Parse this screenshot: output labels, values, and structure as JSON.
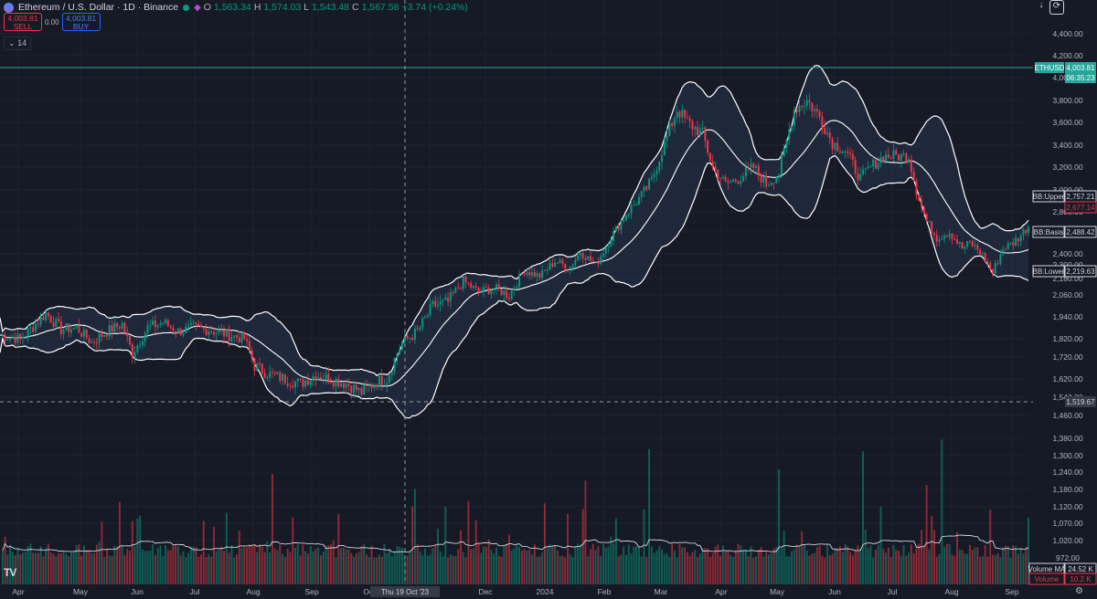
{
  "header": {
    "symbol": "Ethereum / U.S. Dollar · 1D · Binance",
    "o_label": "O",
    "o": "1,563.34",
    "h_label": "H",
    "h": "1,574.03",
    "l_label": "L",
    "l": "1,543.48",
    "c_label": "C",
    "c": "1,567.58",
    "change": "+3.74 (+0.24%)"
  },
  "trade": {
    "sell_price": "4,003.81",
    "sell_label": "SELL",
    "spread": "0.00",
    "buy_price": "4,003.81",
    "buy_label": "BUY"
  },
  "indicator_badge": "14",
  "top_icons": [
    "download-icon",
    "refresh-icon"
  ],
  "footer": {
    "tv_logo": "TV",
    "settings_icon": "⚙"
  },
  "colors": {
    "bg": "#161a25",
    "up": "#089981",
    "down": "#f23645",
    "band": "#ffffff",
    "price_line": "#26a69a",
    "blue": "#2962ff"
  },
  "chart_data": {
    "type": "candlestick",
    "y_axis": {
      "ticks": [
        4400,
        4200,
        4000,
        3800,
        3600,
        3400,
        3200,
        3000,
        2800,
        2600,
        2400,
        2300,
        2180,
        2060,
        1940,
        1820,
        1720,
        1620,
        1540,
        1460,
        1380,
        1300,
        1240,
        1180,
        1120,
        1070,
        1020,
        972
      ]
    },
    "y_tick_labels": [
      "4,400.00",
      "4,200.00",
      "4,000.00",
      "3,800.00",
      "3,600.00",
      "3,400.00",
      "3,200.00",
      "3,000.00",
      "2,800.00",
      "2,600.00",
      "2,400.00",
      "2,300.00",
      "2,180.00",
      "2,060.00",
      "1,940.00",
      "1,820.00",
      "1,720.00",
      "1,620.00",
      "1,540.00",
      "1,460.00",
      "1,380.00",
      "1,300.00",
      "1,240.00",
      "1,180.00",
      "1,120.00",
      "1,070.00",
      "1,020.00",
      "972.00"
    ],
    "x_axis": {
      "labels": [
        "Apr",
        "May",
        "Jun",
        "Jul",
        "Aug",
        "Sep",
        "Oct",
        "Nov",
        "Dec",
        "2024",
        "Feb",
        "Mar",
        "Apr",
        "May",
        "Jun",
        "Jul",
        "Aug",
        "Sep"
      ]
    },
    "crosshair": {
      "date": "Thu 19 Oct '23",
      "price": "1,519.67"
    },
    "current_price": {
      "symbol": "ETHUSD",
      "price": "4,003.81",
      "countdown": "06:35:23"
    },
    "bollinger_labels": [
      {
        "name": "BB:Upper",
        "value": "2,757.21"
      },
      {
        "name": "",
        "value": "2,677.14"
      },
      {
        "name": "BB:Basis",
        "value": "2,488.42"
      },
      {
        "name": "BB:Lower",
        "value": "2,219.63"
      }
    ],
    "volume_labels": [
      {
        "name": "Volume MA",
        "value": "24.52 K"
      },
      {
        "name": "Volume",
        "value": "10.2 K"
      }
    ],
    "price_keypoints": [
      [
        0,
        1840
      ],
      [
        8,
        1820
      ],
      [
        14,
        1900
      ],
      [
        18,
        1960
      ],
      [
        24,
        1870
      ],
      [
        30,
        1880
      ],
      [
        36,
        1800
      ],
      [
        42,
        1860
      ],
      [
        48,
        1900
      ],
      [
        52,
        1740
      ],
      [
        58,
        1880
      ],
      [
        64,
        1910
      ],
      [
        70,
        1860
      ],
      [
        76,
        1880
      ],
      [
        82,
        1870
      ],
      [
        90,
        1840
      ],
      [
        96,
        1820
      ],
      [
        100,
        1680
      ],
      [
        106,
        1640
      ],
      [
        112,
        1620
      ],
      [
        118,
        1600
      ],
      [
        124,
        1640
      ],
      [
        130,
        1620
      ],
      [
        136,
        1600
      ],
      [
        142,
        1560
      ],
      [
        148,
        1610
      ],
      [
        152,
        1620
      ],
      [
        158,
        1800
      ],
      [
        164,
        1860
      ],
      [
        170,
        2000
      ],
      [
        176,
        2020
      ],
      [
        182,
        2160
      ],
      [
        188,
        2080
      ],
      [
        194,
        2110
      ],
      [
        200,
        2060
      ],
      [
        206,
        2250
      ],
      [
        212,
        2200
      ],
      [
        218,
        2330
      ],
      [
        224,
        2280
      ],
      [
        228,
        2420
      ],
      [
        234,
        2300
      ],
      [
        240,
        2550
      ],
      [
        246,
        2780
      ],
      [
        252,
        2950
      ],
      [
        256,
        3080
      ],
      [
        260,
        3350
      ],
      [
        266,
        3720
      ],
      [
        270,
        3600
      ],
      [
        276,
        3500
      ],
      [
        280,
        3200
      ],
      [
        285,
        3050
      ],
      [
        290,
        3100
      ],
      [
        296,
        3200
      ],
      [
        301,
        3050
      ],
      [
        306,
        3150
      ],
      [
        312,
        3720
      ],
      [
        317,
        3800
      ],
      [
        322,
        3650
      ],
      [
        327,
        3420
      ],
      [
        332,
        3350
      ],
      [
        338,
        3100
      ],
      [
        342,
        3200
      ],
      [
        347,
        3300
      ],
      [
        352,
        3300
      ],
      [
        357,
        3300
      ],
      [
        360,
        3000
      ],
      [
        364,
        2700
      ],
      [
        368,
        2550
      ],
      [
        373,
        2600
      ],
      [
        378,
        2450
      ],
      [
        381,
        2500
      ],
      [
        385,
        2420
      ],
      [
        390,
        2230
      ],
      [
        394,
        2450
      ],
      [
        398,
        2500
      ],
      [
        402,
        2600
      ],
      [
        404,
        2660
      ]
    ],
    "volume_baseline": 972,
    "volume_max": 1380
  }
}
